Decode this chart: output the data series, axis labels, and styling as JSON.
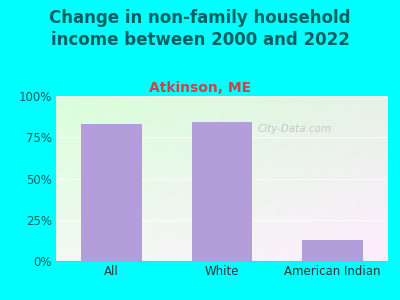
{
  "categories": [
    "All",
    "White",
    "American Indian"
  ],
  "values": [
    83,
    84,
    13
  ],
  "bar_color": "#b39ddb",
  "title": "Change in non-family household\nincome between 2000 and 2022",
  "subtitle": "Atkinson, ME",
  "title_fontsize": 12,
  "subtitle_fontsize": 10,
  "title_color": "#006060",
  "subtitle_color": "#cc4444",
  "ylim": [
    0,
    100
  ],
  "yticks": [
    0,
    25,
    50,
    75,
    100
  ],
  "ytick_labels": [
    "0%",
    "25%",
    "50%",
    "75%",
    "100%"
  ],
  "background_color": "#00ffff",
  "watermark": "City-Data.com",
  "bar_width": 0.55,
  "tick_color": "#006060",
  "xlabel_color": "#333333"
}
